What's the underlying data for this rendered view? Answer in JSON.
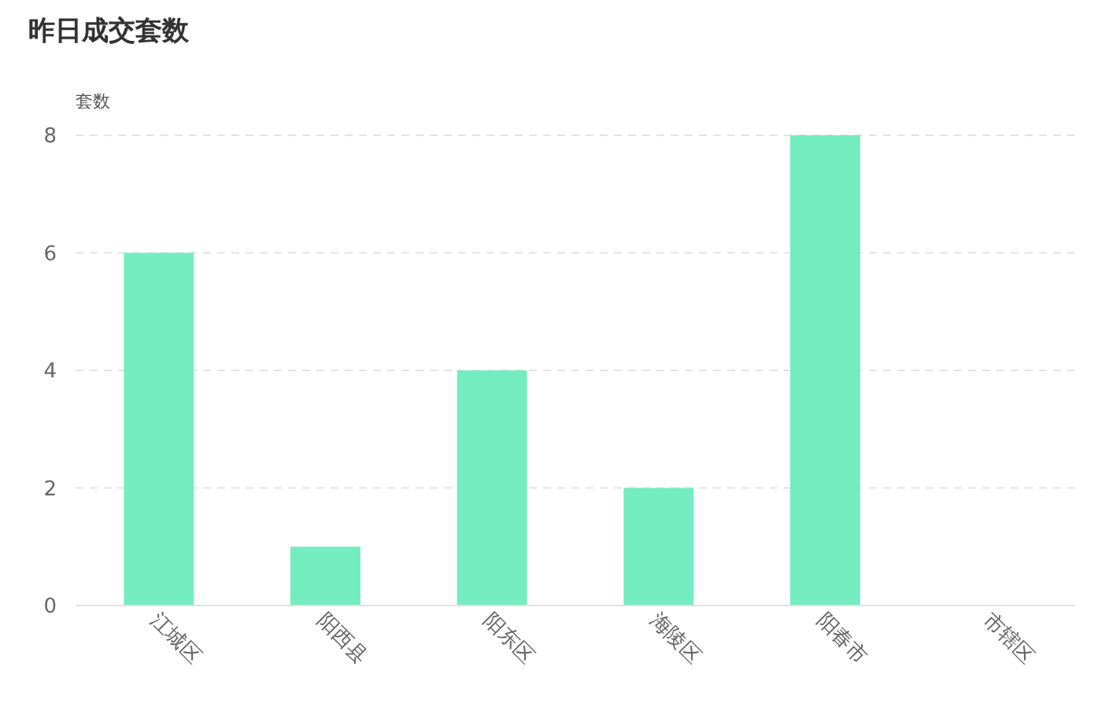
{
  "chart_data": {
    "type": "bar",
    "title": "昨日成交套数",
    "ylabel": "套数",
    "categories": [
      "江城区",
      "阳西县",
      "阳东区",
      "海陵区",
      "阳春市",
      "市辖区"
    ],
    "values": [
      6,
      1,
      4,
      2,
      8,
      0
    ],
    "color": "#73edc0",
    "ylim": [
      0,
      8
    ],
    "yticks": [
      0,
      2,
      4,
      6,
      8
    ],
    "grid": "y",
    "line_style": "dashed"
  }
}
